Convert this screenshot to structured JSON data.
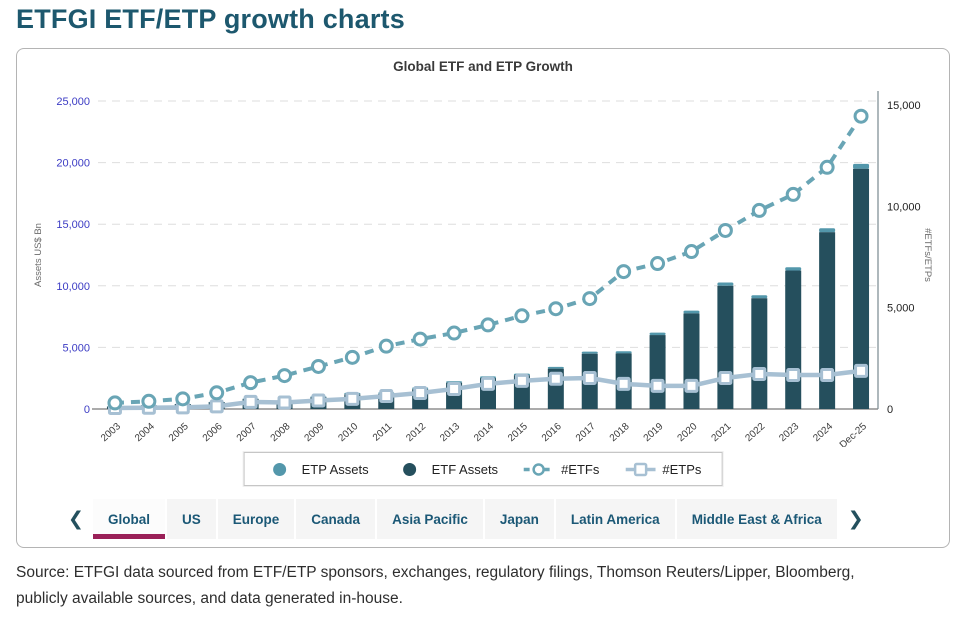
{
  "page": {
    "title": "ETFGI ETF/ETP growth charts",
    "source_line1": "Source: ETFGI data sourced from ETF/ETP sponsors, exchanges, regulatory filings, Thomson Reuters/Lipper, Bloomberg,",
    "source_line2": "publicly available sources, and data generated in-house."
  },
  "colors": {
    "page_title": "#1d586e",
    "tab_text": "#1b5876",
    "active_tab_underline": "#9a2058",
    "chevron": "#24505e",
    "left_tick_labels": "#3c3cc4",
    "etf_bar": "#254f5d",
    "etp_bar": "#5397ab",
    "etfs_line": "#69a5b5",
    "etps_line": "#a7c0d3"
  },
  "tabs": {
    "prev_icon": "❮",
    "next_icon": "❯",
    "active_index": 0,
    "items": [
      "Global",
      "US",
      "Europe",
      "Canada",
      "Asia Pacific",
      "Japan",
      "Latin America",
      "Middle East & Africa"
    ]
  },
  "legend": [
    {
      "label": "ETP Assets",
      "icon": "filled-circle",
      "color": "#5397ab"
    },
    {
      "label": "ETF Assets",
      "icon": "filled-circle",
      "color": "#254f5d"
    },
    {
      "label": "#ETFs",
      "icon": "dashed-line-circle",
      "color": "#69a5b5"
    },
    {
      "label": "#ETPs",
      "icon": "line-square",
      "color": "#a7c0d3"
    }
  ],
  "chart_data": {
    "type": "combo",
    "title": "Global ETF and ETP Growth",
    "categories": [
      "2003",
      "2004",
      "2005",
      "2006",
      "2007",
      "2008",
      "2009",
      "2010",
      "2011",
      "2012",
      "2013",
      "2014",
      "2015",
      "2016",
      "2017",
      "2018",
      "2019",
      "2020",
      "2021",
      "2022",
      "2023",
      "2024",
      "Dec-25"
    ],
    "series": [
      {
        "name": "ETF Assets",
        "type": "bar",
        "stack": "assets",
        "axis": "left",
        "color": "#254f5d",
        "values": [
          205,
          300,
          405,
          555,
          815,
          655,
          955,
          1195,
          1225,
          1610,
          2130,
          2510,
          2740,
          3275,
          4490,
          4520,
          6000,
          7760,
          10000,
          8990,
          11240,
          14350,
          19500
        ]
      },
      {
        "name": "ETP Assets",
        "type": "bar",
        "stack": "assets",
        "axis": "left",
        "color": "#5397ab",
        "values": [
          7,
          10,
          15,
          25,
          45,
          60,
          80,
          120,
          130,
          145,
          125,
          135,
          130,
          145,
          170,
          165,
          195,
          230,
          265,
          240,
          270,
          320,
          400
        ]
      },
      {
        "name": "#ETFs",
        "type": "line",
        "axis": "right",
        "style": "dashed",
        "marker": "circle",
        "color": "#69a5b5",
        "values": [
          300,
          380,
          500,
          800,
          1300,
          1650,
          2100,
          2550,
          3100,
          3450,
          3750,
          4150,
          4600,
          4950,
          5450,
          6780,
          7180,
          7770,
          8810,
          9800,
          10590,
          11930,
          14450
        ]
      },
      {
        "name": "#ETPs",
        "type": "line",
        "axis": "right",
        "style": "solid",
        "marker": "square",
        "color": "#a7c0d3",
        "values": [
          50,
          60,
          80,
          130,
          350,
          320,
          420,
          500,
          640,
          790,
          990,
          1240,
          1390,
          1490,
          1530,
          1240,
          1140,
          1140,
          1530,
          1730,
          1680,
          1680,
          1880
        ]
      }
    ],
    "left_axis": {
      "label": "Assets US$ Bn",
      "max": 25000,
      "ticks": [
        {
          "value": 0,
          "label": "0"
        },
        {
          "value": 5000,
          "label": "5,000"
        },
        {
          "value": 10000,
          "label": "10,000"
        },
        {
          "value": 15000,
          "label": "15,000"
        },
        {
          "value": 20000,
          "label": "20,000"
        },
        {
          "value": 25000,
          "label": "25,000"
        }
      ]
    },
    "right_axis": {
      "label": "#ETFs/ETPs",
      "max": 15200,
      "ticks": [
        {
          "value": 0,
          "label": "0"
        },
        {
          "value": 5000,
          "label": "5,000"
        },
        {
          "value": 10000,
          "label": "10,000"
        },
        {
          "value": 15000,
          "label": "15,000"
        }
      ]
    },
    "grid": true,
    "legend_position": "bottom"
  }
}
